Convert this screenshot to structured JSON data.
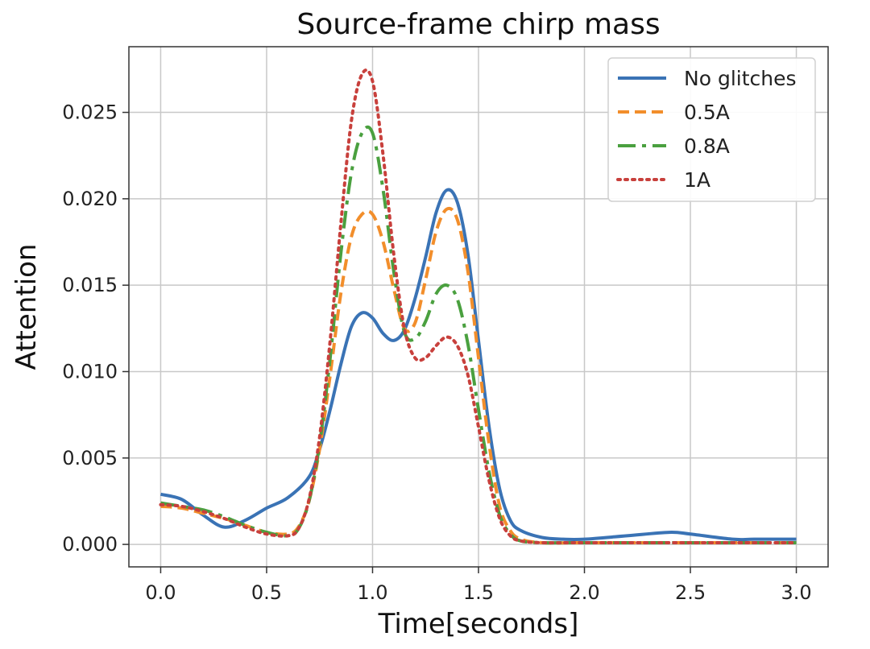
{
  "chart_data": {
    "type": "line",
    "title": "Source-frame chirp mass",
    "xlabel": "Time[seconds]",
    "ylabel": "Attention",
    "xlim": [
      -0.15,
      3.15
    ],
    "ylim": [
      -0.0013,
      0.0288
    ],
    "xticks": [
      0.0,
      0.5,
      1.0,
      1.5,
      2.0,
      2.5,
      3.0
    ],
    "xtick_labels": [
      "0.0",
      "0.5",
      "1.0",
      "1.5",
      "2.0",
      "2.5",
      "3.0"
    ],
    "yticks": [
      0.0,
      0.005,
      0.01,
      0.015,
      0.02,
      0.025
    ],
    "ytick_labels": [
      "0.000",
      "0.005",
      "0.010",
      "0.015",
      "0.020",
      "0.025"
    ],
    "grid": true,
    "legend_position": "top-right",
    "series": [
      {
        "name": "No glitches",
        "color": "#3a73b5",
        "dash": "solid",
        "x": [
          0.0,
          0.1,
          0.2,
          0.3,
          0.4,
          0.5,
          0.6,
          0.7,
          0.75,
          0.8,
          0.85,
          0.9,
          0.95,
          1.0,
          1.05,
          1.1,
          1.15,
          1.2,
          1.25,
          1.3,
          1.35,
          1.4,
          1.45,
          1.5,
          1.55,
          1.6,
          1.65,
          1.7,
          1.8,
          1.9,
          2.0,
          2.2,
          2.4,
          2.5,
          2.7,
          2.8,
          3.0
        ],
        "y": [
          0.0029,
          0.0026,
          0.0017,
          0.001,
          0.0014,
          0.0021,
          0.0027,
          0.0039,
          0.0055,
          0.0078,
          0.0104,
          0.0126,
          0.0134,
          0.0131,
          0.0122,
          0.0118,
          0.0124,
          0.0142,
          0.0166,
          0.0192,
          0.0205,
          0.0198,
          0.0168,
          0.0118,
          0.0068,
          0.0032,
          0.0014,
          0.0008,
          0.0004,
          0.0003,
          0.0003,
          0.0005,
          0.0007,
          0.0006,
          0.0003,
          0.0003,
          0.0003
        ]
      },
      {
        "name": "0.5A",
        "color": "#f28e2b",
        "dash": "dashed",
        "x": [
          0.0,
          0.1,
          0.2,
          0.3,
          0.4,
          0.5,
          0.6,
          0.65,
          0.7,
          0.75,
          0.8,
          0.85,
          0.9,
          0.95,
          1.0,
          1.05,
          1.1,
          1.15,
          1.2,
          1.25,
          1.3,
          1.35,
          1.4,
          1.45,
          1.5,
          1.55,
          1.6,
          1.65,
          1.7,
          1.8,
          2.0,
          2.5,
          3.0
        ],
        "y": [
          0.0022,
          0.0021,
          0.0018,
          0.0015,
          0.0011,
          0.0007,
          0.0006,
          0.001,
          0.0025,
          0.0055,
          0.0098,
          0.0145,
          0.0178,
          0.0191,
          0.0191,
          0.0175,
          0.0148,
          0.0125,
          0.0128,
          0.0153,
          0.0181,
          0.0194,
          0.0188,
          0.0158,
          0.0108,
          0.0058,
          0.0022,
          0.0008,
          0.0003,
          0.0001,
          0.0001,
          0.0001,
          0.0001
        ]
      },
      {
        "name": "0.8A",
        "color": "#4aa03f",
        "dash": "dashdot",
        "x": [
          0.0,
          0.1,
          0.2,
          0.3,
          0.4,
          0.5,
          0.6,
          0.65,
          0.7,
          0.75,
          0.8,
          0.85,
          0.9,
          0.95,
          1.0,
          1.05,
          1.1,
          1.15,
          1.2,
          1.25,
          1.3,
          1.35,
          1.4,
          1.45,
          1.5,
          1.55,
          1.6,
          1.65,
          1.7,
          1.8,
          2.0,
          2.5,
          3.0
        ],
        "y": [
          0.0024,
          0.0022,
          0.002,
          0.0016,
          0.0011,
          0.0007,
          0.0005,
          0.0009,
          0.0025,
          0.0058,
          0.0108,
          0.0168,
          0.0215,
          0.0238,
          0.0238,
          0.0205,
          0.0158,
          0.0123,
          0.0119,
          0.0129,
          0.0145,
          0.015,
          0.0142,
          0.0116,
          0.0078,
          0.0042,
          0.0017,
          0.0006,
          0.0002,
          0.0001,
          0.0001,
          0.0001,
          0.0001
        ]
      },
      {
        "name": "1A",
        "color": "#c8403c",
        "dash": "dotted",
        "x": [
          0.0,
          0.1,
          0.2,
          0.3,
          0.4,
          0.5,
          0.6,
          0.65,
          0.7,
          0.75,
          0.8,
          0.85,
          0.9,
          0.95,
          1.0,
          1.05,
          1.1,
          1.15,
          1.2,
          1.25,
          1.3,
          1.35,
          1.4,
          1.45,
          1.5,
          1.55,
          1.6,
          1.65,
          1.7,
          1.8,
          2.0,
          2.5,
          3.0
        ],
        "y": [
          0.0023,
          0.0022,
          0.0019,
          0.0015,
          0.001,
          0.0006,
          0.0005,
          0.0009,
          0.0026,
          0.0062,
          0.0118,
          0.0185,
          0.0245,
          0.0272,
          0.0268,
          0.0225,
          0.0168,
          0.0125,
          0.0108,
          0.0108,
          0.0115,
          0.012,
          0.0115,
          0.0098,
          0.0068,
          0.0037,
          0.0015,
          0.0005,
          0.0002,
          0.0001,
          0.0001,
          0.0001,
          0.0001
        ]
      }
    ]
  }
}
